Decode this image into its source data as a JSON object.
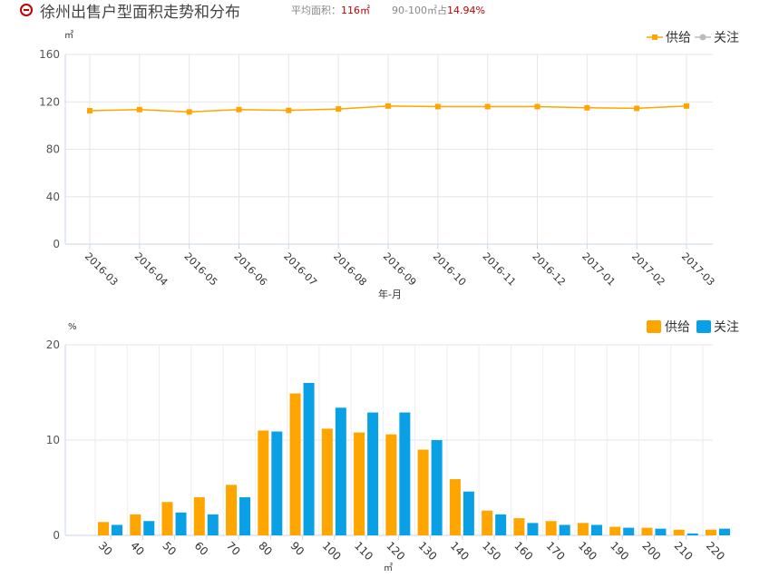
{
  "header": {
    "title": "徐州出售户型面积走势和分布",
    "avg_label": "平均面积：",
    "avg_value": "116㎡",
    "range_label": "90-100㎡占",
    "range_value": "14.94%"
  },
  "colors": {
    "supply": "#ffa500",
    "attention": "#0aa0e6",
    "line_attention": "#bbbbbb"
  },
  "chart_data": [
    {
      "type": "line",
      "unit": "㎡",
      "xlabel": "年-月",
      "ylim": [
        0,
        160
      ],
      "yticks": [
        0,
        40,
        80,
        120,
        160
      ],
      "categories": [
        "2016-03",
        "2016-04",
        "2016-05",
        "2016-06",
        "2016-07",
        "2016-08",
        "2016-09",
        "2016-10",
        "2016-11",
        "2016-12",
        "2017-01",
        "2017-02",
        "2017-03"
      ],
      "legend": [
        "供给",
        "关注"
      ],
      "series": [
        {
          "name": "供给",
          "values": [
            112.5,
            113.5,
            111.5,
            113.5,
            112.8,
            114,
            116.5,
            116,
            116,
            116,
            115,
            114.5,
            116.5
          ]
        }
      ]
    },
    {
      "type": "bar",
      "unit": "%",
      "xlabel": "㎡",
      "ylim": [
        0,
        20
      ],
      "yticks": [
        0,
        10,
        20
      ],
      "categories": [
        "30",
        "40",
        "50",
        "60",
        "70",
        "80",
        "90",
        "100",
        "110",
        "120",
        "130",
        "140",
        "150",
        "160",
        "170",
        "180",
        "190",
        "200",
        "210",
        "220"
      ],
      "legend": [
        "供给",
        "关注"
      ],
      "series": [
        {
          "name": "供给",
          "values": [
            1.4,
            2.2,
            3.5,
            4.0,
            5.3,
            11.0,
            14.9,
            11.2,
            10.8,
            10.6,
            9.0,
            5.9,
            2.6,
            1.8,
            1.5,
            1.3,
            0.9,
            0.8,
            0.6,
            0.6
          ]
        },
        {
          "name": "关注",
          "values": [
            1.1,
            1.5,
            2.4,
            2.2,
            4.0,
            10.9,
            16.0,
            13.4,
            12.9,
            12.9,
            10.0,
            4.6,
            2.2,
            1.3,
            1.1,
            1.1,
            0.8,
            0.7,
            0.2,
            0.7
          ]
        }
      ]
    }
  ]
}
